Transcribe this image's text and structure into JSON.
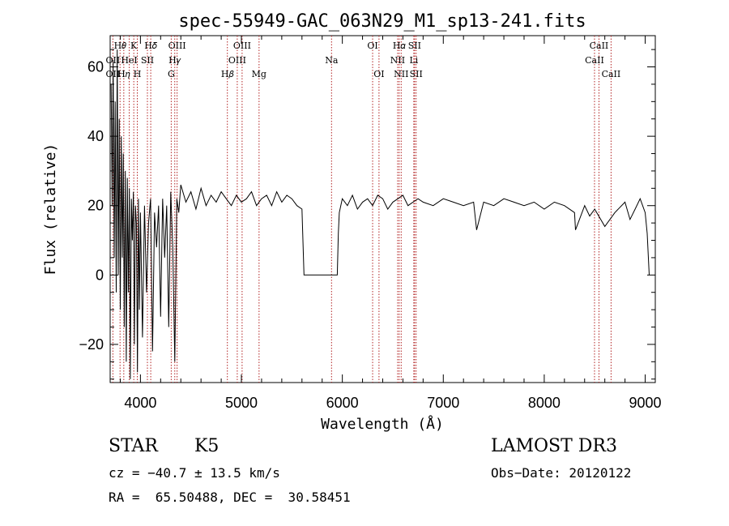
{
  "chart_data": {
    "type": "line",
    "title": "spec-55949-GAC_063N29_M1_sp13-241.fits",
    "xlabel": "Wavelength (Å)",
    "ylabel": "Flux (relative)",
    "xlim": [
      3700,
      9100
    ],
    "ylim": [
      -31,
      69
    ],
    "xticks": [
      4000,
      5000,
      6000,
      7000,
      8000,
      9000
    ],
    "xtick_labels": [
      "4000",
      "5000",
      "6000",
      "7000",
      "8000",
      "9000"
    ],
    "yticks": [
      60,
      40,
      20,
      0,
      -20
    ],
    "ytick_labels": [
      "60",
      "40",
      "20",
      "0",
      "−20"
    ],
    "grid": false,
    "line_color": "#000000",
    "marker_color": "#b22222",
    "spectrum": {
      "x": [
        3710,
        3720,
        3730,
        3740,
        3750,
        3760,
        3770,
        3780,
        3790,
        3800,
        3810,
        3820,
        3830,
        3840,
        3850,
        3860,
        3870,
        3880,
        3890,
        3900,
        3910,
        3920,
        3930,
        3940,
        3950,
        3960,
        3970,
        3980,
        3990,
        4000,
        4020,
        4040,
        4060,
        4080,
        4100,
        4120,
        4140,
        4160,
        4180,
        4200,
        4220,
        4240,
        4260,
        4280,
        4300,
        4320,
        4340,
        4360,
        4380,
        4400,
        4450,
        4500,
        4550,
        4600,
        4650,
        4700,
        4750,
        4800,
        4850,
        4900,
        4950,
        5000,
        5050,
        5100,
        5150,
        5200,
        5250,
        5300,
        5350,
        5400,
        5450,
        5500,
        5550,
        5600,
        5620,
        5640,
        5900,
        5950,
        5960,
        5970,
        6000,
        6050,
        6100,
        6150,
        6200,
        6250,
        6300,
        6350,
        6400,
        6450,
        6500,
        6550,
        6600,
        6650,
        6700,
        6750,
        6800,
        6900,
        7000,
        7100,
        7200,
        7300,
        7330,
        7400,
        7500,
        7600,
        7700,
        7800,
        7900,
        8000,
        8100,
        8200,
        8300,
        8310,
        8400,
        8450,
        8500,
        8600,
        8700,
        8800,
        8850,
        8900,
        8950,
        9000,
        9020,
        9040
      ],
      "y": [
        55,
        20,
        62,
        5,
        50,
        -5,
        65,
        0,
        45,
        -10,
        40,
        5,
        35,
        -15,
        30,
        -25,
        28,
        -5,
        25,
        -30,
        22,
        10,
        24,
        -20,
        20,
        15,
        -28,
        22,
        -10,
        18,
        -18,
        20,
        -5,
        15,
        22,
        -22,
        18,
        8,
        20,
        -12,
        22,
        5,
        20,
        -15,
        24,
        8,
        -25,
        22,
        18,
        26,
        21,
        24,
        19,
        25,
        20,
        23,
        21,
        24,
        22,
        20,
        23,
        21,
        22,
        24,
        20,
        22,
        23,
        20,
        24,
        21,
        23,
        22,
        20,
        19,
        0,
        0,
        0,
        0,
        12,
        18,
        22,
        20,
        23,
        19,
        21,
        22,
        20,
        23,
        22,
        19,
        21,
        22,
        23,
        20,
        21,
        22,
        21,
        20,
        22,
        21,
        20,
        21,
        13,
        21,
        20,
        22,
        21,
        20,
        21,
        19,
        21,
        20,
        18,
        13,
        20,
        17,
        19,
        14,
        18,
        21,
        16,
        19,
        22,
        18,
        12,
        0
      ]
    },
    "line_labels": [
      {
        "text": "H𝜃",
        "x": 3798,
        "row": 1,
        "line": 3798
      },
      {
        "text": "K",
        "x": 3934,
        "row": 1,
        "line": 3934
      },
      {
        "text": "H𝛿",
        "x": 4102,
        "row": 1,
        "line": 4102
      },
      {
        "text": "OIII",
        "x": 4363,
        "row": 1,
        "line": 4363
      },
      {
        "text": "OIII",
        "x": 5007,
        "row": 1,
        "line": 5007
      },
      {
        "text": "OI",
        "x": 6300,
        "row": 1,
        "line": 6300
      },
      {
        "text": "H𝛼",
        "x": 6563,
        "row": 1,
        "line": 6563
      },
      {
        "text": "SII",
        "x": 6716,
        "row": 1,
        "line": 6716
      },
      {
        "text": "CaII",
        "x": 8542,
        "row": 1,
        "line": 8542
      },
      {
        "text": "OII",
        "x": 3727,
        "row": 2,
        "line": 3727
      },
      {
        "text": "HeI",
        "x": 3889,
        "row": 2,
        "line": 3889
      },
      {
        "text": "SII",
        "x": 4069,
        "row": 2,
        "line": 4069
      },
      {
        "text": "H𝛾",
        "x": 4340,
        "row": 2,
        "line": 4340
      },
      {
        "text": "OIII",
        "x": 4959,
        "row": 2,
        "line": 4959
      },
      {
        "text": "Na",
        "x": 5893,
        "row": 2,
        "line": 5893
      },
      {
        "text": "NII",
        "x": 6548,
        "row": 2,
        "line": 6548
      },
      {
        "text": "Li",
        "x": 6708,
        "row": 2,
        "line": 6708
      },
      {
        "text": "CaII",
        "x": 8498,
        "row": 2,
        "line": 8498
      },
      {
        "text": "OII",
        "x": 3727,
        "row": 3,
        "line": 3727
      },
      {
        "text": "H𝜂",
        "x": 3835,
        "row": 3,
        "line": 3835
      },
      {
        "text": "H",
        "x": 3969,
        "row": 3,
        "line": 3969
      },
      {
        "text": "G",
        "x": 4305,
        "row": 3,
        "line": 4305
      },
      {
        "text": "H𝛽",
        "x": 4861,
        "row": 3,
        "line": 4861
      },
      {
        "text": "Mg",
        "x": 5175,
        "row": 3,
        "line": 5175
      },
      {
        "text": "OI",
        "x": 6363,
        "row": 3,
        "line": 6363
      },
      {
        "text": "NII",
        "x": 6583,
        "row": 3,
        "line": 6583
      },
      {
        "text": "SII",
        "x": 6731,
        "row": 3,
        "line": 6731
      },
      {
        "text": "CaII",
        "x": 8662,
        "row": 3,
        "line": 8662
      }
    ]
  },
  "info": {
    "object_class": "STAR",
    "subclass": "K5",
    "survey": "LAMOST DR3",
    "cz": "cz = −40.7 ± 13.5 km/s",
    "obs_date": "Obs−Date: 20120122",
    "coords": "RA =  65.50488, DEC =  30.58451"
  }
}
